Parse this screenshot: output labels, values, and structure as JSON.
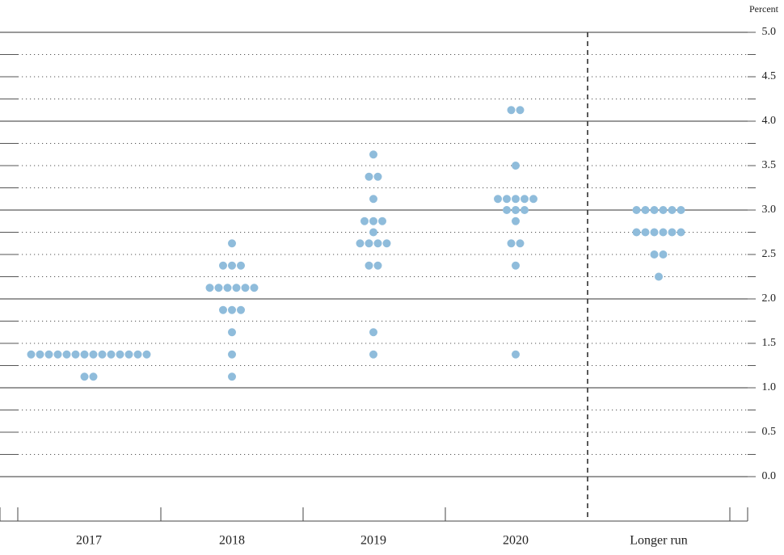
{
  "chart_data": {
    "type": "dot",
    "y_unit_label": "Percent",
    "categories": [
      "2017",
      "2018",
      "2019",
      "2020",
      "Longer run"
    ],
    "dots": [
      [
        1.375,
        1.375,
        1.375,
        1.375,
        1.375,
        1.375,
        1.375,
        1.375,
        1.375,
        1.375,
        1.375,
        1.375,
        1.375,
        1.375,
        1.125,
        1.125
      ],
      [
        2.625,
        2.375,
        2.375,
        2.375,
        2.125,
        2.125,
        2.125,
        2.125,
        2.125,
        2.125,
        1.875,
        1.875,
        1.875,
        1.625,
        1.375,
        1.125
      ],
      [
        3.625,
        3.375,
        3.375,
        3.125,
        2.875,
        2.875,
        2.875,
        2.75,
        2.625,
        2.625,
        2.625,
        2.625,
        2.375,
        2.375,
        1.625,
        1.375
      ],
      [
        4.125,
        4.125,
        3.5,
        3.125,
        3.125,
        3.125,
        3.125,
        3.125,
        3.0,
        3.0,
        3.0,
        2.875,
        2.625,
        2.625,
        2.375,
        1.375
      ],
      [
        3.0,
        3.0,
        3.0,
        3.0,
        3.0,
        3.0,
        2.75,
        2.75,
        2.75,
        2.75,
        2.75,
        2.75,
        2.5,
        2.5,
        2.25
      ]
    ],
    "color": "#8fbcdb",
    "ylim": [
      -0.5,
      5.0
    ],
    "yticks": [
      {
        "value": 0,
        "label": "0.0"
      },
      0.5,
      {
        "value": 1,
        "label": "1.0"
      },
      1.5,
      {
        "value": 2,
        "label": "2.0"
      },
      2.5,
      {
        "value": 3,
        "label": "3.0"
      },
      3.5,
      {
        "value": 4,
        "label": "4.0"
      },
      4.5,
      {
        "value": 5,
        "label": "5.0"
      }
    ],
    "minor_yticks": [
      0.25,
      0.75,
      1.25,
      1.75,
      2.25,
      2.75,
      3.25,
      3.75,
      4.25,
      4.75
    ],
    "grid": true
  }
}
